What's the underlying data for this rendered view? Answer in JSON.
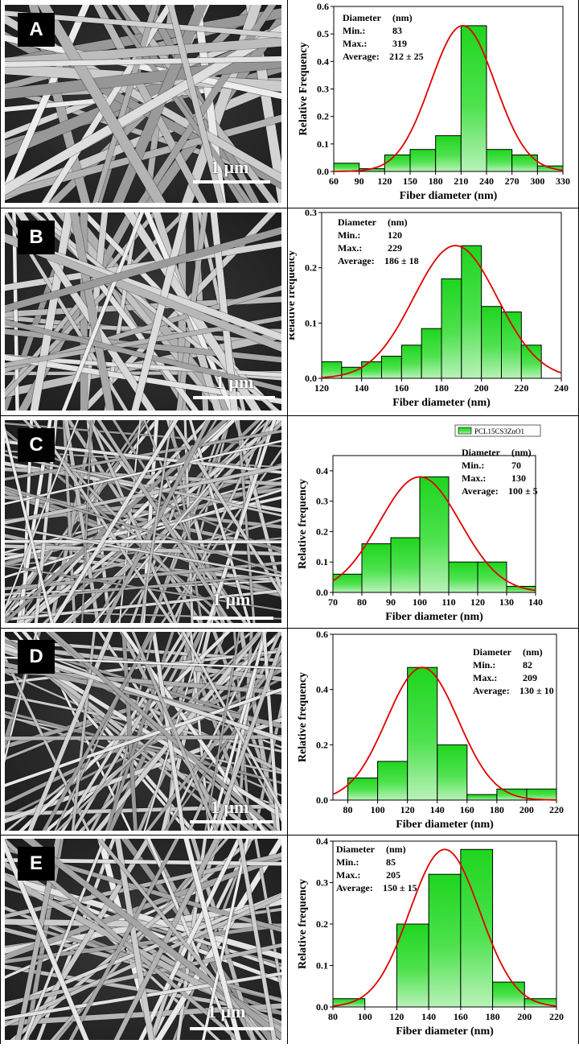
{
  "panels": [
    {
      "label": "A",
      "scale_text": "1 μm",
      "chart_data": {
        "type": "bar",
        "xlabel": "Fiber diameter (nm)",
        "ylabel": "Relative Frequency",
        "xlim": [
          60,
          330
        ],
        "ylim": [
          0,
          0.6
        ],
        "xticks": [
          60,
          90,
          120,
          150,
          180,
          210,
          240,
          270,
          300,
          330
        ],
        "yticks": [
          0.0,
          0.1,
          0.2,
          0.3,
          0.4,
          0.5,
          0.6
        ],
        "bin_width": 30,
        "bins": [
          60,
          90,
          120,
          150,
          180,
          210,
          240,
          270,
          300
        ],
        "values": [
          0.03,
          0.01,
          0.06,
          0.08,
          0.13,
          0.53,
          0.08,
          0.06,
          0.02
        ],
        "fit": {
          "mean": 212,
          "sigma": 38,
          "peak": 0.53
        },
        "stats": [
          {
            "name": "Diameter",
            "value": "(nm)"
          },
          {
            "name": "Min.:",
            "value": "83"
          },
          {
            "name": "Max.:",
            "value": "319"
          },
          {
            "name": "Average:",
            "value": "212 ± 25"
          }
        ]
      }
    },
    {
      "label": "B",
      "scale_text": "1 μm",
      "chart_data": {
        "type": "bar",
        "xlabel": "Fiber diameter (nm)",
        "ylabel": "Relative frequency",
        "xlim": [
          120,
          240
        ],
        "ylim": [
          0,
          0.3
        ],
        "xticks": [
          120,
          140,
          160,
          180,
          200,
          220,
          240
        ],
        "yticks": [
          0.0,
          0.1,
          0.2,
          0.3
        ],
        "bin_width": 10,
        "bins": [
          120,
          130,
          140,
          150,
          160,
          170,
          180,
          190,
          200,
          210,
          220
        ],
        "values": [
          0.03,
          0.02,
          0.03,
          0.04,
          0.06,
          0.09,
          0.18,
          0.24,
          0.13,
          0.12,
          0.06
        ],
        "fit": {
          "mean": 187,
          "sigma": 21,
          "peak": 0.24
        },
        "stats": [
          {
            "name": "Diameter",
            "value": "(nm)"
          },
          {
            "name": "Min.:",
            "value": "120"
          },
          {
            "name": "Max.:",
            "value": "229"
          },
          {
            "name": "Average:",
            "value": "186 ± 18"
          }
        ]
      }
    },
    {
      "label": "C",
      "scale_text": "1 μm",
      "chart_data": {
        "type": "bar",
        "legend": "PCL15CS3ZnO1",
        "xlabel": "Fiber diameter (nm)",
        "ylabel": "Relative frequency",
        "xlim": [
          70,
          140
        ],
        "ylim": [
          0,
          0.45
        ],
        "xticks": [
          70,
          80,
          90,
          100,
          110,
          120,
          130,
          140
        ],
        "yticks": [
          0.0,
          0.1,
          0.2,
          0.3,
          0.4
        ],
        "bin_width": 10,
        "bins": [
          70,
          80,
          90,
          100,
          110,
          120,
          130
        ],
        "values": [
          0.06,
          0.16,
          0.18,
          0.38,
          0.1,
          0.1,
          0.02
        ],
        "fit": {
          "mean": 100,
          "sigma": 14,
          "peak": 0.38
        },
        "stats": [
          {
            "name": "Diameter",
            "value": "(nm)"
          },
          {
            "name": "Min.:",
            "value": "70"
          },
          {
            "name": "Max.:",
            "value": "130"
          },
          {
            "name": "Average:",
            "value": "100 ± 5"
          }
        ]
      }
    },
    {
      "label": "D",
      "scale_text": "1 μm",
      "chart_data": {
        "type": "bar",
        "xlabel": "Fiber diameter (nm)",
        "ylabel": "Relative frequency",
        "xlim": [
          70,
          220
        ],
        "ylim": [
          0,
          0.6
        ],
        "xticks": [
          80,
          100,
          120,
          140,
          160,
          180,
          200,
          220
        ],
        "yticks": [
          0.0,
          0.2,
          0.4,
          0.6
        ],
        "bin_width": 20,
        "bins": [
          80,
          100,
          120,
          140,
          160,
          180,
          200
        ],
        "values": [
          0.08,
          0.14,
          0.48,
          0.2,
          0.02,
          0.04,
          0.04
        ],
        "fit": {
          "mean": 130,
          "sigma": 24,
          "peak": 0.48
        },
        "stats": [
          {
            "name": "Diameter",
            "value": "(nm)"
          },
          {
            "name": "Min.:",
            "value": "82"
          },
          {
            "name": "Max.:",
            "value": "209"
          },
          {
            "name": "Average:",
            "value": "130 ± 10"
          }
        ]
      }
    },
    {
      "label": "E",
      "scale_text": "1 μm",
      "chart_data": {
        "type": "bar",
        "xlabel": "Fiber diameter (nm)",
        "ylabel": "Relative frequency",
        "xlim": [
          80,
          220
        ],
        "ylim": [
          0,
          0.4
        ],
        "xticks": [
          80,
          100,
          120,
          140,
          160,
          180,
          200,
          220
        ],
        "yticks": [
          0.0,
          0.1,
          0.2,
          0.3,
          0.4
        ],
        "bin_width": 20,
        "bins": [
          80,
          100,
          120,
          140,
          160,
          180,
          200
        ],
        "values": [
          0.02,
          0.0,
          0.2,
          0.32,
          0.38,
          0.06,
          0.02
        ],
        "fit": {
          "mean": 150,
          "sigma": 22,
          "peak": 0.38
        },
        "stats": [
          {
            "name": "Diameter",
            "value": "(nm)"
          },
          {
            "name": "Min.:",
            "value": "85"
          },
          {
            "name": "Max.:",
            "value": "205"
          },
          {
            "name": "Average:",
            "value": "150 ± 15"
          }
        ]
      }
    }
  ]
}
